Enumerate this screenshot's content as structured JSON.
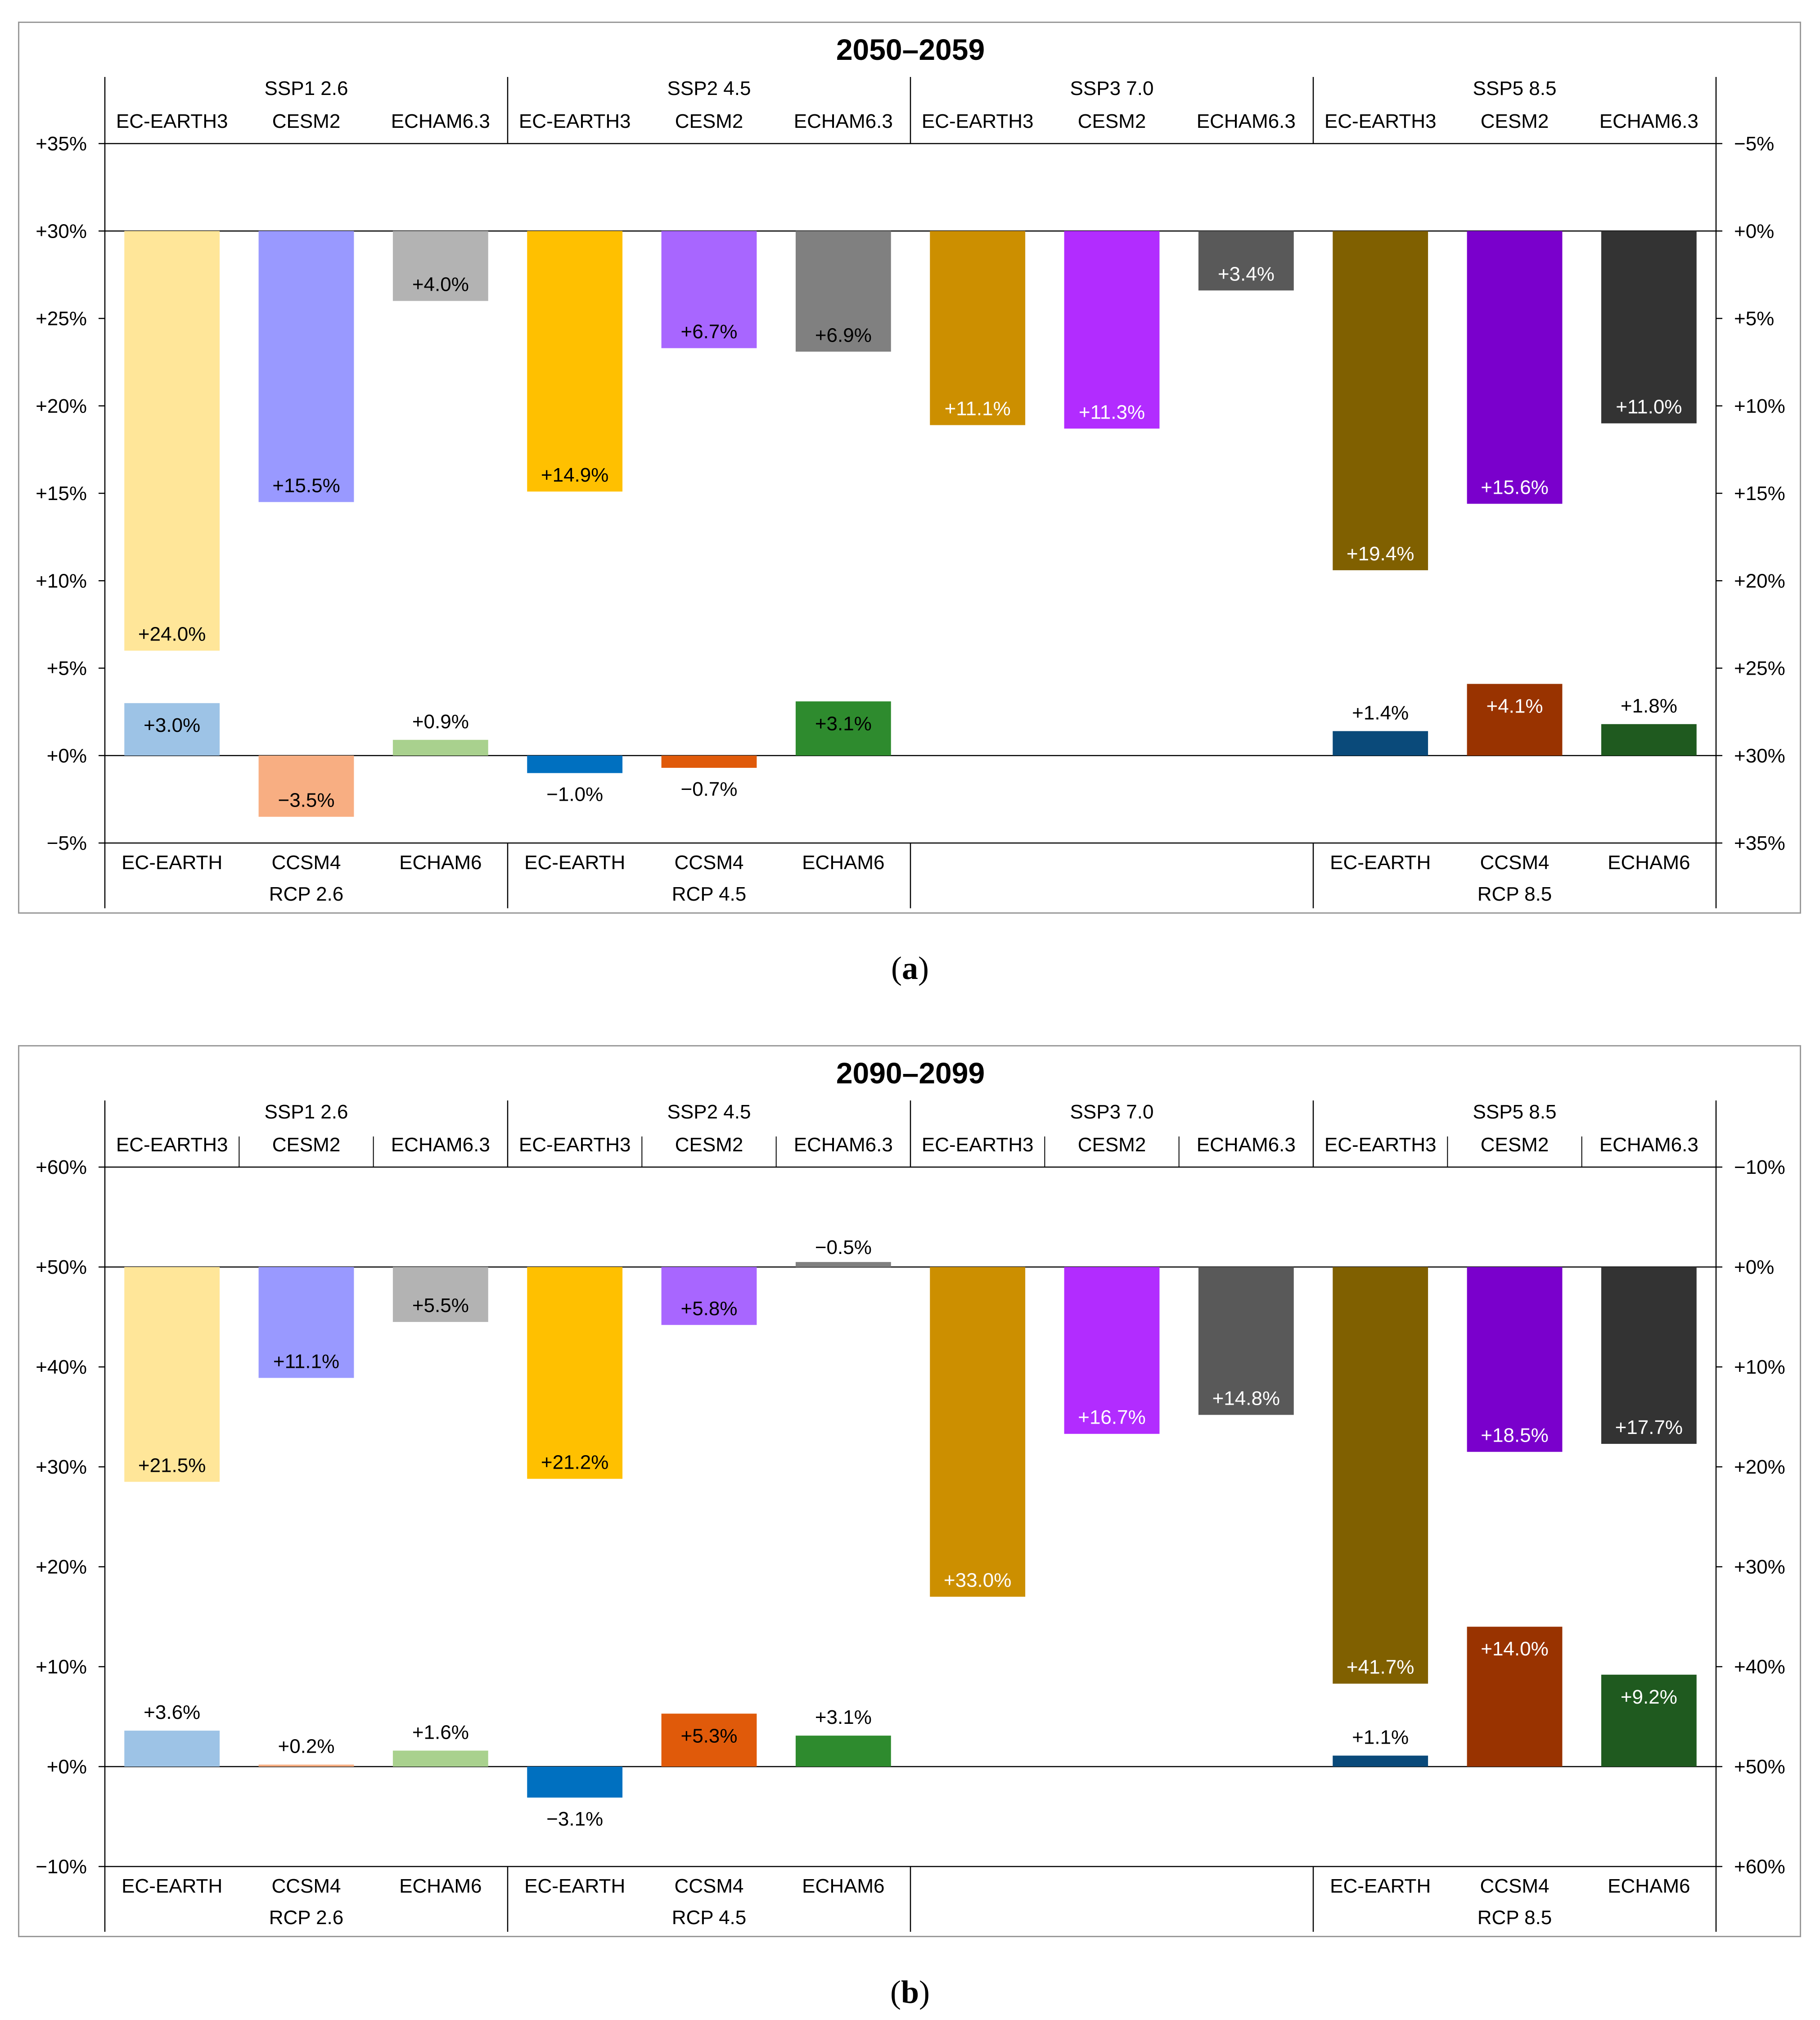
{
  "chart_data": [
    {
      "type": "bar",
      "title": "2050–2059",
      "left_axis": {
        "min": -5,
        "max": 35,
        "ticks": [
          "+35%",
          "+30%",
          "+25%",
          "+20%",
          "+15%",
          "+10%",
          "+5%",
          "+0%",
          "−5%"
        ],
        "tick_values": [
          35,
          30,
          25,
          20,
          15,
          10,
          5,
          0,
          -5
        ]
      },
      "right_axis": {
        "zero_at_left_value": 30,
        "direction": "downward",
        "ticks": [
          "−5%",
          "+0%",
          "+5%",
          "+10%",
          "+15%",
          "+20%",
          "+25%",
          "+30%",
          "+35%"
        ],
        "tick_values": [
          -5,
          0,
          5,
          10,
          15,
          20,
          25,
          30,
          35
        ]
      },
      "top_groups": [
        {
          "label": "SSP1 2.6",
          "models": [
            "EC-EARTH3",
            "CESM2",
            "ECHAM6.3"
          ]
        },
        {
          "label": "SSP2 4.5",
          "models": [
            "EC-EARTH3",
            "CESM2",
            "ECHAM6.3"
          ]
        },
        {
          "label": "SSP3 7.0",
          "models": [
            "EC-EARTH3",
            "CESM2",
            "ECHAM6.3"
          ]
        },
        {
          "label": "SSP5 8.5",
          "models": [
            "EC-EARTH3",
            "CESM2",
            "ECHAM6.3"
          ]
        }
      ],
      "bottom_groups": [
        {
          "label": "RCP 2.6",
          "models": [
            "EC-EARTH",
            "CCSM4",
            "ECHAM6"
          ]
        },
        {
          "label": "RCP 4.5",
          "models": [
            "EC-EARTH",
            "CCSM4",
            "ECHAM6"
          ]
        },
        {
          "label": "",
          "models": [
            "",
            "",
            ""
          ]
        },
        {
          "label": "RCP 8.5",
          "models": [
            "EC-EARTH",
            "CCSM4",
            "ECHAM6"
          ]
        }
      ],
      "series": [
        {
          "name": "SSP (right axis, downward from 0%)",
          "values": [
            24.0,
            15.5,
            4.0,
            14.9,
            6.7,
            6.9,
            11.1,
            11.3,
            3.4,
            19.4,
            15.6,
            11.0
          ],
          "labels": [
            "+24.0%",
            "+15.5%",
            "+4.0%",
            "+14.9%",
            "+6.7%",
            "+6.9%",
            "+11.1%",
            "+11.3%",
            "+3.4%",
            "+19.4%",
            "+15.6%",
            "+11.0%"
          ],
          "colors": [
            "#FFE699",
            "#9999FF",
            "#B3B3B3",
            "#FFC000",
            "#A866FF",
            "#808080",
            "#CC8F00",
            "#B22CFF",
            "#595959",
            "#806000",
            "#7A00CC",
            "#333333"
          ],
          "label_colors": [
            "#000",
            "#000",
            "#000",
            "#000",
            "#000",
            "#000",
            "#fff",
            "#fff",
            "#fff",
            "#fff",
            "#fff",
            "#fff"
          ]
        },
        {
          "name": "RCP (left axis)",
          "values": [
            3.0,
            -3.5,
            0.9,
            -1.0,
            -0.7,
            3.1,
            null,
            null,
            null,
            1.4,
            4.1,
            1.8
          ],
          "labels": [
            "+3.0%",
            "−3.5%",
            "+0.9%",
            "−1.0%",
            "−0.7%",
            "+3.1%",
            "",
            "",
            "",
            "+1.4%",
            "+4.1%",
            "+1.8%"
          ],
          "colors": [
            "#9DC3E6",
            "#F8AE82",
            "#A9D18E",
            "#0070C0",
            "#E05A0A",
            "#2E8B2E",
            "",
            "",
            "",
            "#0A4A7A",
            "#993300",
            "#1F5A1F"
          ],
          "label_inside": [
            true,
            true,
            false,
            false,
            false,
            true,
            false,
            false,
            false,
            false,
            true,
            false
          ],
          "label_colors": [
            "#000",
            "#000",
            "#000",
            "#000",
            "#000",
            "#000",
            "#000",
            "#000",
            "#000",
            "#000",
            "#fff",
            "#000"
          ]
        }
      ]
    },
    {
      "type": "bar",
      "title": "2090–2099",
      "left_axis": {
        "min": -10,
        "max": 60,
        "ticks": [
          "+60%",
          "+50%",
          "+40%",
          "+30%",
          "+20%",
          "+10%",
          "+0%",
          "−10%"
        ],
        "tick_values": [
          60,
          50,
          40,
          30,
          20,
          10,
          0,
          -10
        ]
      },
      "right_axis": {
        "zero_at_left_value": 50,
        "direction": "downward",
        "ticks": [
          "−10%",
          "+0%",
          "+10%",
          "+20%",
          "+30%",
          "+40%",
          "+50%",
          "+60%"
        ],
        "tick_values": [
          -10,
          0,
          10,
          20,
          30,
          40,
          50,
          60
        ]
      },
      "top_groups": [
        {
          "label": "SSP1 2.6",
          "models": [
            "EC-EARTH3",
            "CESM2",
            "ECHAM6.3"
          ]
        },
        {
          "label": "SSP2 4.5",
          "models": [
            "EC-EARTH3",
            "CESM2",
            "ECHAM6.3"
          ]
        },
        {
          "label": "SSP3 7.0",
          "models": [
            "EC-EARTH3",
            "CESM2",
            "ECHAM6.3"
          ]
        },
        {
          "label": "SSP5 8.5",
          "models": [
            "EC-EARTH3",
            "CESM2",
            "ECHAM6.3"
          ]
        }
      ],
      "bottom_groups": [
        {
          "label": "RCP 2.6",
          "models": [
            "EC-EARTH",
            "CCSM4",
            "ECHAM6"
          ]
        },
        {
          "label": "RCP 4.5",
          "models": [
            "EC-EARTH",
            "CCSM4",
            "ECHAM6"
          ]
        },
        {
          "label": "",
          "models": [
            "",
            "",
            ""
          ]
        },
        {
          "label": "RCP 8.5",
          "models": [
            "EC-EARTH",
            "CCSM4",
            "ECHAM6"
          ]
        }
      ],
      "series": [
        {
          "name": "SSP (right axis, downward from 0%)",
          "values": [
            21.5,
            11.1,
            5.5,
            21.2,
            5.8,
            -0.5,
            33.0,
            16.7,
            14.8,
            41.7,
            18.5,
            17.7
          ],
          "labels": [
            "+21.5%",
            "+11.1%",
            "+5.5%",
            "+21.2%",
            "+5.8%",
            "−0.5%",
            "+33.0%",
            "+16.7%",
            "+14.8%",
            "+41.7%",
            "+18.5%",
            "+17.7%"
          ],
          "colors": [
            "#FFE699",
            "#9999FF",
            "#B3B3B3",
            "#FFC000",
            "#A866FF",
            "#808080",
            "#CC8F00",
            "#B22CFF",
            "#595959",
            "#806000",
            "#7A00CC",
            "#333333"
          ],
          "label_colors": [
            "#000",
            "#000",
            "#000",
            "#000",
            "#000",
            "#000",
            "#fff",
            "#fff",
            "#fff",
            "#fff",
            "#fff",
            "#fff"
          ]
        },
        {
          "name": "RCP (left axis)",
          "values": [
            3.6,
            0.2,
            1.6,
            -3.1,
            5.3,
            3.1,
            null,
            null,
            null,
            1.1,
            14.0,
            9.2
          ],
          "labels": [
            "+3.6%",
            "+0.2%",
            "+1.6%",
            "−3.1%",
            "+5.3%",
            "+3.1%",
            "",
            "",
            "",
            "+1.1%",
            "+14.0%",
            "+9.2%"
          ],
          "colors": [
            "#9DC3E6",
            "#F8AE82",
            "#A9D18E",
            "#0070C0",
            "#E05A0A",
            "#2E8B2E",
            "",
            "",
            "",
            "#0A4A7A",
            "#993300",
            "#1F5A1F"
          ],
          "label_inside": [
            false,
            false,
            false,
            false,
            true,
            false,
            false,
            false,
            false,
            false,
            true,
            true
          ],
          "label_colors": [
            "#000",
            "#000",
            "#000",
            "#000",
            "#000",
            "#000",
            "#000",
            "#000",
            "#000",
            "#000",
            "#fff",
            "#fff"
          ]
        }
      ]
    }
  ],
  "captions": {
    "a": "a",
    "b": "b"
  }
}
